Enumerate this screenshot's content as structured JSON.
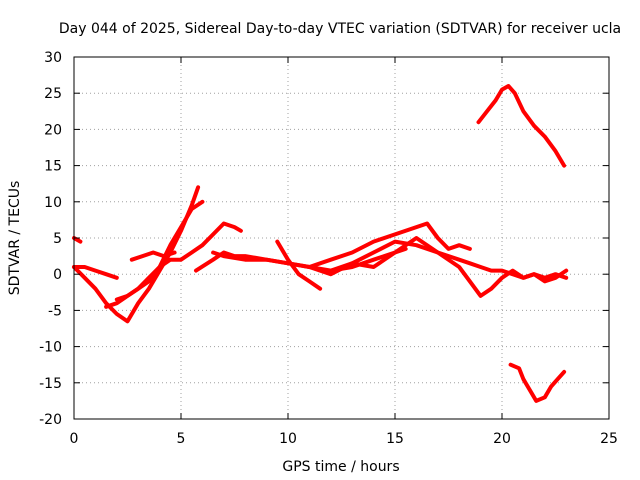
{
  "chart_data": {
    "type": "line",
    "title": "Day 044 of 2025, Sidereal Day-to-day VTEC variation (SDTVAR) for receiver ucla",
    "xlabel": "GPS time / hours",
    "ylabel": "SDTVAR / TECUs",
    "xlim": [
      0,
      25
    ],
    "ylim": [
      -20,
      30
    ],
    "xticks": [
      "0",
      "5",
      "10",
      "15",
      "20",
      "25"
    ],
    "xtick_values": [
      0,
      5,
      10,
      15,
      20,
      25
    ],
    "yticks": [
      "-20",
      "-15",
      "-10",
      "-5",
      "0",
      "5",
      "10",
      "15",
      "20",
      "25",
      "30"
    ],
    "ytick_values": [
      -20,
      -15,
      -10,
      -5,
      0,
      5,
      10,
      15,
      20,
      25,
      30
    ],
    "grid": true,
    "color": "#ff0000",
    "series": [
      {
        "name": "s1",
        "x": [
          0.0,
          0.3
        ],
        "y": [
          5.0,
          4.5
        ]
      },
      {
        "name": "s2",
        "x": [
          0.0,
          0.5,
          1.0,
          1.5,
          2.0,
          2.5,
          3.0,
          3.5,
          4.0,
          4.5,
          5.0,
          5.5,
          5.8
        ],
        "y": [
          1.0,
          -0.5,
          -2.0,
          -4.0,
          -5.5,
          -6.5,
          -4.0,
          -2.0,
          0.5,
          3.0,
          6.0,
          9.5,
          12.0
        ]
      },
      {
        "name": "s3",
        "x": [
          0.0,
          0.5,
          1.0,
          1.5,
          2.0
        ],
        "y": [
          1.0,
          1.0,
          0.5,
          0.0,
          -0.5
        ]
      },
      {
        "name": "s4",
        "x": [
          1.5,
          2.0,
          2.5,
          3.0,
          3.5,
          4.0,
          4.5,
          5.0,
          5.5,
          6.0
        ],
        "y": [
          -4.5,
          -4.0,
          -3.0,
          -2.0,
          -1.0,
          1.0,
          4.0,
          6.5,
          9.0,
          10.0
        ]
      },
      {
        "name": "s5",
        "x": [
          2.0,
          2.5,
          3.0,
          3.5,
          4.0,
          4.5,
          5.0,
          5.5,
          6.0,
          6.5,
          7.0,
          7.5,
          7.8
        ],
        "y": [
          -3.5,
          -3.0,
          -2.0,
          -0.5,
          1.0,
          2.0,
          2.0,
          3.0,
          4.0,
          5.5,
          7.0,
          6.5,
          6.0
        ]
      },
      {
        "name": "s6",
        "x": [
          2.7,
          3.2,
          3.7,
          4.2,
          4.7
        ],
        "y": [
          2.0,
          2.5,
          3.0,
          2.5,
          3.0
        ]
      },
      {
        "name": "s7",
        "x": [
          5.7,
          6.5,
          7.0,
          7.5,
          8.0,
          9.0,
          10.0,
          11.0,
          12.0,
          13.0,
          14.0,
          15.0,
          15.5
        ],
        "y": [
          0.5,
          2.0,
          3.0,
          2.5,
          2.5,
          2.0,
          1.5,
          1.0,
          0.5,
          1.0,
          2.0,
          3.0,
          3.5
        ]
      },
      {
        "name": "s8",
        "x": [
          6.5,
          7.0,
          8.0,
          9.0,
          10.0,
          11.0,
          12.0,
          13.0,
          14.0,
          15.0,
          16.0,
          16.5,
          17.0,
          17.5,
          18.0,
          18.5
        ],
        "y": [
          3.0,
          2.5,
          2.0,
          2.0,
          1.5,
          1.0,
          2.0,
          3.0,
          4.5,
          5.5,
          6.5,
          7.0,
          5.0,
          3.5,
          4.0,
          3.5
        ]
      },
      {
        "name": "s9",
        "x": [
          9.5,
          10.0,
          10.5,
          11.0,
          11.5
        ],
        "y": [
          4.5,
          2.0,
          0.0,
          -1.0,
          -2.0
        ]
      },
      {
        "name": "s10",
        "x": [
          11.0,
          12.0,
          13.0,
          14.0,
          15.0,
          16.0,
          17.0,
          18.0,
          18.5,
          19.0,
          19.5,
          20.0,
          20.5,
          21.0,
          21.5,
          22.0,
          22.5,
          23.0
        ],
        "y": [
          1.0,
          0.0,
          1.5,
          3.0,
          4.5,
          4.0,
          3.0,
          2.0,
          1.5,
          1.0,
          0.5,
          0.5,
          0.0,
          -0.5,
          0.0,
          -0.5,
          0.0,
          -0.5
        ]
      },
      {
        "name": "s11",
        "x": [
          12.0,
          13.0,
          14.0,
          15.0,
          16.0,
          17.0,
          18.0,
          18.5,
          19.0,
          19.5,
          20.0,
          20.5,
          21.0,
          21.5,
          22.0,
          22.5,
          23.0
        ],
        "y": [
          0.5,
          1.5,
          1.0,
          3.0,
          5.0,
          3.0,
          1.0,
          -1.0,
          -3.0,
          -2.0,
          -0.5,
          0.5,
          -0.5,
          0.0,
          -1.0,
          -0.5,
          0.5
        ]
      },
      {
        "name": "s12",
        "x": [
          18.9,
          19.3,
          19.7,
          20.0,
          20.3,
          20.6,
          21.0,
          21.5,
          22.0,
          22.5,
          22.9
        ],
        "y": [
          21.0,
          22.5,
          24.0,
          25.5,
          26.0,
          25.0,
          22.5,
          20.5,
          19.0,
          17.0,
          15.0
        ]
      },
      {
        "name": "s13",
        "x": [
          20.4,
          20.8,
          21.0,
          21.3,
          21.6,
          22.0,
          22.3,
          22.6,
          22.9
        ],
        "y": [
          -12.5,
          -13.0,
          -14.5,
          -16.0,
          -17.5,
          -17.0,
          -15.5,
          -14.5,
          -13.5
        ]
      }
    ]
  }
}
